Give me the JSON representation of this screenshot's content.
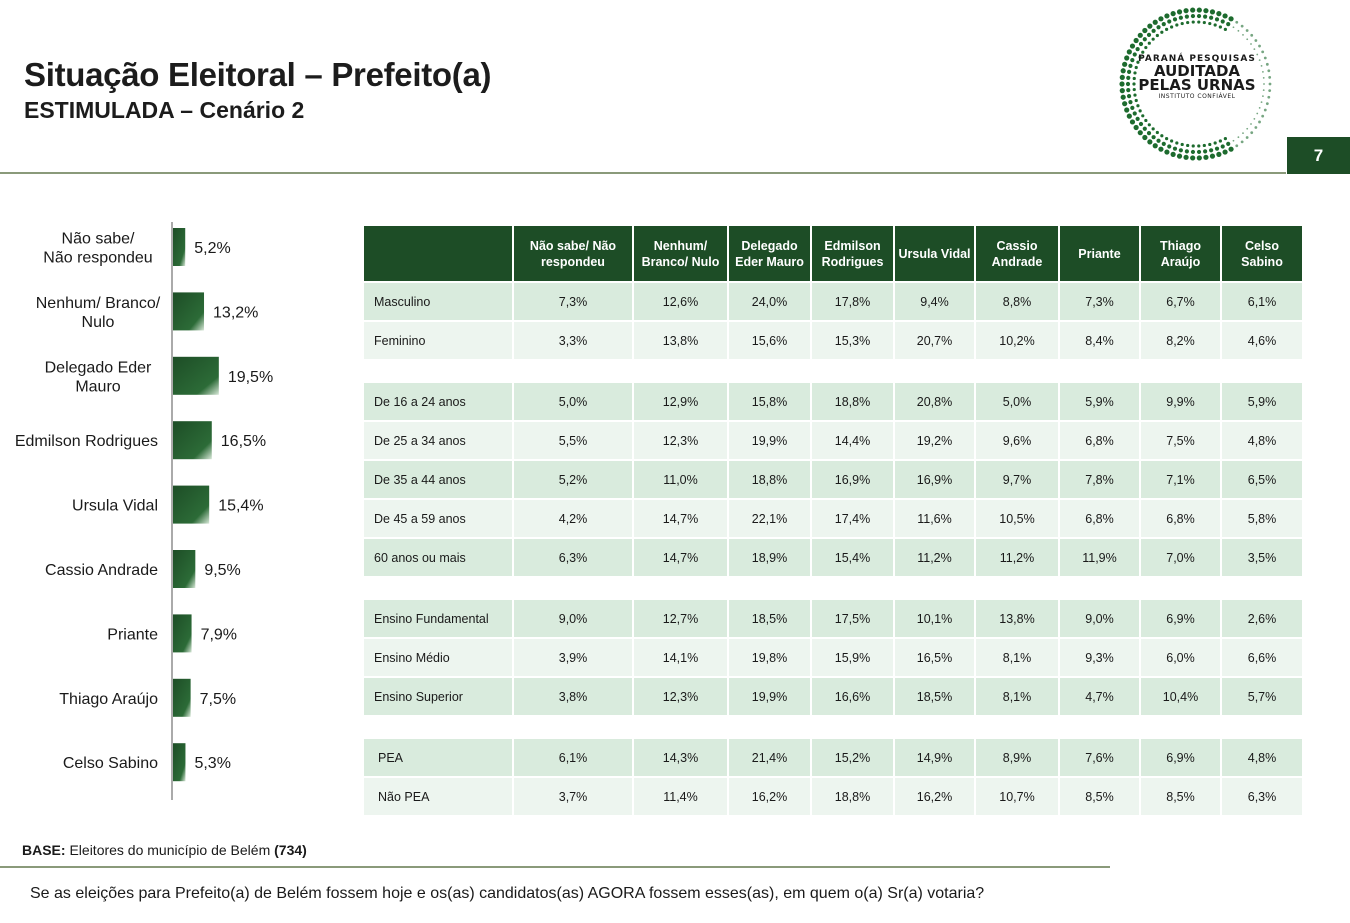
{
  "header": {
    "title": "Situação Eleitoral – Prefeito(a)",
    "subtitle": "ESTIMULADA – Cenário 2",
    "page_number": "7"
  },
  "logo": {
    "line1": "PARANÁ PESQUISAS",
    "line2": "AUDITADA",
    "line3": "PELAS URNAS",
    "line4": "INSTITUTO CONFIÁVEL",
    "color": "#1d6b2e"
  },
  "chart_data": [
    {
      "type": "bar",
      "orientation": "horizontal",
      "categories": [
        [
          "Não sabe/",
          "Não respondeu"
        ],
        [
          "Nenhum/ Branco/",
          "Nulo"
        ],
        [
          "Delegado Eder",
          "Mauro"
        ],
        [
          "Edmilson Rodrigues"
        ],
        [
          "Ursula Vidal"
        ],
        [
          "Cassio Andrade"
        ],
        [
          "Priante"
        ],
        [
          "Thiago Araújo"
        ],
        [
          "Celso Sabino"
        ]
      ],
      "values": [
        5.2,
        13.2,
        19.5,
        16.5,
        15.4,
        9.5,
        7.9,
        7.5,
        5.3
      ],
      "value_labels": [
        "5,2%",
        "13,2%",
        "19,5%",
        "16,5%",
        "15,4%",
        "9,5%",
        "7,9%",
        "7,5%",
        "5,3%"
      ],
      "bar_color": "#1d4d26",
      "grid": false
    },
    {
      "type": "table",
      "columns": [
        [
          "Não sabe/ Não",
          "respondeu"
        ],
        [
          "Nenhum/",
          "Branco/ Nulo"
        ],
        [
          "Delegado",
          "Eder Mauro"
        ],
        [
          "Edmilson",
          "Rodrigues"
        ],
        [
          "Ursula Vidal"
        ],
        [
          "Cassio",
          "Andrade"
        ],
        [
          "Priante"
        ],
        [
          "Thiago",
          "Araújo"
        ],
        [
          "Celso",
          "Sabino"
        ]
      ],
      "groups": [
        {
          "rows": [
            {
              "label": "Masculino",
              "values": [
                "7,3%",
                "12,6%",
                "24,0%",
                "17,8%",
                "9,4%",
                "8,8%",
                "7,3%",
                "6,7%",
                "6,1%"
              ]
            },
            {
              "label": "Feminino",
              "values": [
                "3,3%",
                "13,8%",
                "15,6%",
                "15,3%",
                "20,7%",
                "10,2%",
                "8,4%",
                "8,2%",
                "4,6%"
              ]
            }
          ]
        },
        {
          "rows": [
            {
              "label": "De 16 a 24 anos",
              "values": [
                "5,0%",
                "12,9%",
                "15,8%",
                "18,8%",
                "20,8%",
                "5,0%",
                "5,9%",
                "9,9%",
                "5,9%"
              ]
            },
            {
              "label": "De 25 a 34 anos",
              "values": [
                "5,5%",
                "12,3%",
                "19,9%",
                "14,4%",
                "19,2%",
                "9,6%",
                "6,8%",
                "7,5%",
                "4,8%"
              ]
            },
            {
              "label": "De 35 a 44 anos",
              "values": [
                "5,2%",
                "11,0%",
                "18,8%",
                "16,9%",
                "16,9%",
                "9,7%",
                "7,8%",
                "7,1%",
                "6,5%"
              ]
            },
            {
              "label": "De 45 a 59 anos",
              "values": [
                "4,2%",
                "14,7%",
                "22,1%",
                "17,4%",
                "11,6%",
                "10,5%",
                "6,8%",
                "6,8%",
                "5,8%"
              ]
            },
            {
              "label": "60 anos ou mais",
              "values": [
                "6,3%",
                "14,7%",
                "18,9%",
                "15,4%",
                "11,2%",
                "11,2%",
                "11,9%",
                "7,0%",
                "3,5%"
              ]
            }
          ]
        },
        {
          "rows": [
            {
              "label": "Ensino Fundamental",
              "values": [
                "9,0%",
                "12,7%",
                "18,5%",
                "17,5%",
                "10,1%",
                "13,8%",
                "9,0%",
                "6,9%",
                "2,6%"
              ]
            },
            {
              "label": "Ensino Médio",
              "values": [
                "3,9%",
                "14,1%",
                "19,8%",
                "15,9%",
                "16,5%",
                "8,1%",
                "9,3%",
                "6,0%",
                "6,6%"
              ]
            },
            {
              "label": "Ensino Superior",
              "values": [
                "3,8%",
                "12,3%",
                "19,9%",
                "16,6%",
                "18,5%",
                "8,1%",
                "4,7%",
                "10,4%",
                "5,7%"
              ]
            }
          ]
        },
        {
          "rows": [
            {
              "label": "PEA",
              "values": [
                "6,1%",
                "14,3%",
                "21,4%",
                "15,2%",
                "14,9%",
                "8,9%",
                "7,6%",
                "6,9%",
                "4,8%"
              ]
            },
            {
              "label": "Não PEA",
              "values": [
                "3,7%",
                "11,4%",
                "16,2%",
                "18,8%",
                "16,2%",
                "10,7%",
                "8,5%",
                "8,5%",
                "6,3%"
              ]
            }
          ]
        }
      ],
      "header_color": "#1d4d26",
      "row_colors": [
        "#d9ebdd",
        "#edf5ef"
      ]
    }
  ],
  "footer": {
    "base_label": "BASE:",
    "base_text": "Eleitores do município de Belém",
    "base_count": "(734)",
    "question": "Se as eleições para Prefeito(a) de Belém fossem hoje e os(as) candidatos(as) AGORA fossem esses(as), em quem o(a) Sr(a) votaria?"
  }
}
